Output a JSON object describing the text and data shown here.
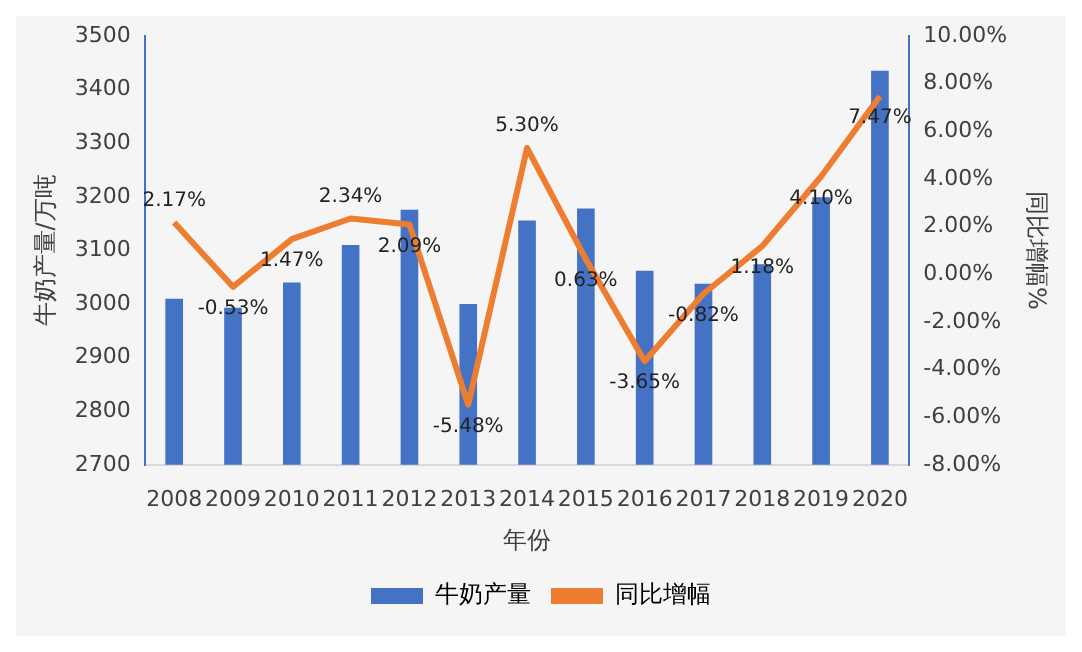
{
  "chart_data": {
    "type": "bar",
    "xlabel": "年份",
    "ylabel": "牛奶产量/万吨",
    "y2label": "同比增幅%",
    "categories": [
      "2008",
      "2009",
      "2010",
      "2011",
      "2012",
      "2013",
      "2014",
      "2015",
      "2016",
      "2017",
      "2018",
      "2019",
      "2020"
    ],
    "series": [
      {
        "name": "牛奶产量",
        "color": "#4472c4",
        "values": [
          3010,
          2993,
          3040,
          3110,
          3176,
          3000,
          3156,
          3178,
          3062,
          3038,
          3074,
          3199,
          3435
        ]
      },
      {
        "name": "同比增幅",
        "type": "line",
        "axis": "y2",
        "color": "#ed7d31",
        "values": [
          2.17,
          -0.53,
          1.47,
          2.34,
          2.09,
          -5.48,
          5.3,
          0.63,
          -3.65,
          -0.82,
          1.18,
          4.1,
          7.47
        ],
        "value_labels": [
          "2.17%",
          "-0.53%",
          "1.47%",
          "2.34%",
          "2.09%",
          "-5.48%",
          "5.30%",
          "0.63%",
          "-3.65%",
          "-0.82%",
          "1.18%",
          "4.10%",
          "7.47%"
        ]
      }
    ],
    "ylim": [
      2700,
      3500
    ],
    "yticks": [
      2700,
      2800,
      2900,
      3000,
      3100,
      3200,
      3300,
      3400,
      3500
    ],
    "y2lim": [
      -8,
      10
    ],
    "y2ticks": [
      {
        "value": -8,
        "label": "-8.00%"
      },
      {
        "value": -6,
        "label": "-6.00%"
      },
      {
        "value": -4,
        "label": "-4.00%"
      },
      {
        "value": -2,
        "label": "-2.00%"
      },
      {
        "value": 0,
        "label": "0.00%"
      },
      {
        "value": 2,
        "label": "2.00%"
      },
      {
        "value": 4,
        "label": "4.00%"
      },
      {
        "value": 6,
        "label": "6.00%"
      },
      {
        "value": 8,
        "label": "8.00%"
      },
      {
        "value": 10,
        "label": "10.00%"
      }
    ],
    "grid": false,
    "legend": "bottom",
    "marker": "none",
    "line_style": "solid"
  }
}
